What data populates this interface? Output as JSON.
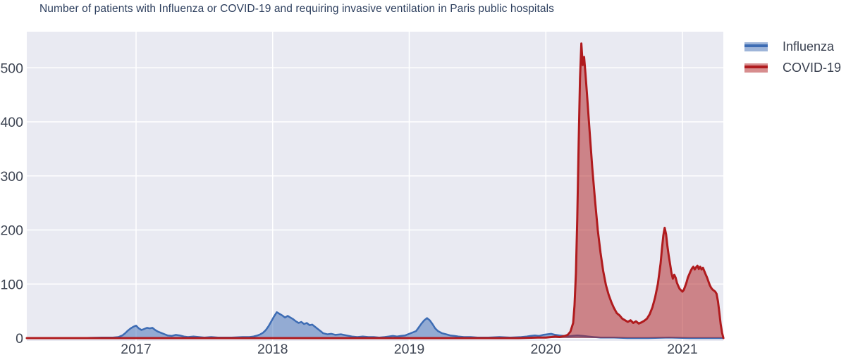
{
  "title": "Number of patients with Influenza or COVID-19 and requiring invasive ventilation in Paris public hospitals",
  "colors": {
    "plot_background": "#e9eaf2",
    "gridline": "#ffffff",
    "title_text": "#2d3f5e",
    "tick_text": "#3f4654",
    "influenza_line": "#3d6cb4",
    "influenza_fill": "rgba(61,108,180,0.5)",
    "covid_line": "#b01b1e",
    "covid_fill": "rgba(176,27,30,0.5)"
  },
  "legend": {
    "items": [
      {
        "label": "Influenza"
      },
      {
        "label": "COVID-19"
      }
    ]
  },
  "chart_data": {
    "type": "area",
    "title": "Number of patients with Influenza or COVID-19 and requiring invasive ventilation in Paris public hospitals",
    "xlabel": "",
    "ylabel": "",
    "grid": true,
    "legend_position": "outside-top-right",
    "x_axis": {
      "range_years": [
        2016.2,
        2021.3
      ],
      "tick_values": [
        2017,
        2018,
        2019,
        2020,
        2021
      ],
      "tick_labels": [
        "2017",
        "2018",
        "2019",
        "2020",
        "2021"
      ]
    },
    "y_axis": {
      "range": [
        0,
        566
      ],
      "tick_values": [
        0,
        100,
        200,
        300,
        400,
        500
      ],
      "tick_labels": [
        "0",
        "100",
        "200",
        "300",
        "400",
        "500"
      ]
    },
    "series": [
      {
        "name": "Influenza",
        "line_color": "#3d6cb4",
        "fill_color": "rgba(61,108,180,0.5)",
        "points": [
          [
            2016.2,
            0
          ],
          [
            2016.4,
            0
          ],
          [
            2016.6,
            0
          ],
          [
            2016.75,
            1
          ],
          [
            2016.83,
            1
          ],
          [
            2016.87,
            2
          ],
          [
            2016.9,
            5
          ],
          [
            2016.92,
            9
          ],
          [
            2016.94,
            14
          ],
          [
            2016.96,
            18
          ],
          [
            2016.98,
            21
          ],
          [
            2017.0,
            23
          ],
          [
            2017.02,
            18
          ],
          [
            2017.04,
            15
          ],
          [
            2017.06,
            17
          ],
          [
            2017.08,
            19
          ],
          [
            2017.1,
            18
          ],
          [
            2017.12,
            19
          ],
          [
            2017.14,
            15
          ],
          [
            2017.16,
            12
          ],
          [
            2017.18,
            10
          ],
          [
            2017.2,
            8
          ],
          [
            2017.23,
            5
          ],
          [
            2017.26,
            4
          ],
          [
            2017.29,
            6
          ],
          [
            2017.32,
            5
          ],
          [
            2017.35,
            3
          ],
          [
            2017.38,
            2
          ],
          [
            2017.42,
            3
          ],
          [
            2017.46,
            2
          ],
          [
            2017.5,
            1
          ],
          [
            2017.55,
            2
          ],
          [
            2017.6,
            1
          ],
          [
            2017.7,
            1
          ],
          [
            2017.78,
            2
          ],
          [
            2017.83,
            2
          ],
          [
            2017.86,
            3
          ],
          [
            2017.89,
            5
          ],
          [
            2017.91,
            7
          ],
          [
            2017.93,
            10
          ],
          [
            2017.95,
            15
          ],
          [
            2017.97,
            22
          ],
          [
            2017.99,
            31
          ],
          [
            2018.01,
            40
          ],
          [
            2018.03,
            48
          ],
          [
            2018.05,
            45
          ],
          [
            2018.07,
            42
          ],
          [
            2018.09,
            38
          ],
          [
            2018.11,
            41
          ],
          [
            2018.13,
            38
          ],
          [
            2018.15,
            35
          ],
          [
            2018.17,
            31
          ],
          [
            2018.19,
            28
          ],
          [
            2018.21,
            30
          ],
          [
            2018.23,
            26
          ],
          [
            2018.25,
            28
          ],
          [
            2018.27,
            24
          ],
          [
            2018.29,
            25
          ],
          [
            2018.31,
            21
          ],
          [
            2018.33,
            17
          ],
          [
            2018.35,
            13
          ],
          [
            2018.37,
            9
          ],
          [
            2018.4,
            7
          ],
          [
            2018.43,
            8
          ],
          [
            2018.46,
            6
          ],
          [
            2018.5,
            7
          ],
          [
            2018.54,
            5
          ],
          [
            2018.58,
            3
          ],
          [
            2018.62,
            2
          ],
          [
            2018.66,
            3
          ],
          [
            2018.7,
            2
          ],
          [
            2018.74,
            2
          ],
          [
            2018.78,
            1
          ],
          [
            2018.82,
            2
          ],
          [
            2018.85,
            3
          ],
          [
            2018.88,
            4
          ],
          [
            2018.91,
            3
          ],
          [
            2018.94,
            4
          ],
          [
            2018.97,
            5
          ],
          [
            2019.0,
            8
          ],
          [
            2019.03,
            11
          ],
          [
            2019.05,
            13
          ],
          [
            2019.07,
            20
          ],
          [
            2019.09,
            27
          ],
          [
            2019.11,
            33
          ],
          [
            2019.13,
            37
          ],
          [
            2019.15,
            33
          ],
          [
            2019.17,
            26
          ],
          [
            2019.19,
            18
          ],
          [
            2019.21,
            13
          ],
          [
            2019.24,
            9
          ],
          [
            2019.27,
            7
          ],
          [
            2019.3,
            5
          ],
          [
            2019.33,
            4
          ],
          [
            2019.36,
            3
          ],
          [
            2019.4,
            2
          ],
          [
            2019.45,
            2
          ],
          [
            2019.5,
            1
          ],
          [
            2019.58,
            1
          ],
          [
            2019.66,
            2
          ],
          [
            2019.74,
            1
          ],
          [
            2019.82,
            2
          ],
          [
            2019.86,
            3
          ],
          [
            2019.89,
            4
          ],
          [
            2019.92,
            5
          ],
          [
            2019.95,
            4
          ],
          [
            2019.98,
            6
          ],
          [
            2020.01,
            7
          ],
          [
            2020.04,
            8
          ],
          [
            2020.07,
            6
          ],
          [
            2020.1,
            5
          ],
          [
            2020.13,
            4
          ],
          [
            2020.16,
            3
          ],
          [
            2020.19,
            4
          ],
          [
            2020.23,
            5
          ],
          [
            2020.27,
            4
          ],
          [
            2020.31,
            3
          ],
          [
            2020.35,
            2
          ],
          [
            2020.4,
            1
          ],
          [
            2020.5,
            1
          ],
          [
            2020.6,
            0
          ],
          [
            2020.75,
            0
          ],
          [
            2020.9,
            1
          ],
          [
            2021.05,
            0
          ],
          [
            2021.3,
            0
          ]
        ]
      },
      {
        "name": "COVID-19",
        "line_color": "#b01b1e",
        "fill_color": "rgba(176,27,30,0.5)",
        "points": [
          [
            2016.2,
            0
          ],
          [
            2017.0,
            0
          ],
          [
            2018.0,
            0
          ],
          [
            2019.0,
            0
          ],
          [
            2019.8,
            0
          ],
          [
            2019.95,
            1
          ],
          [
            2020.0,
            1
          ],
          [
            2020.04,
            2
          ],
          [
            2020.07,
            3
          ],
          [
            2020.1,
            2
          ],
          [
            2020.12,
            3
          ],
          [
            2020.14,
            4
          ],
          [
            2020.16,
            6
          ],
          [
            2020.18,
            12
          ],
          [
            2020.2,
            28
          ],
          [
            2020.21,
            60
          ],
          [
            2020.22,
            120
          ],
          [
            2020.23,
            220
          ],
          [
            2020.24,
            360
          ],
          [
            2020.25,
            480
          ],
          [
            2020.26,
            545
          ],
          [
            2020.27,
            505
          ],
          [
            2020.28,
            520
          ],
          [
            2020.29,
            490
          ],
          [
            2020.3,
            455
          ],
          [
            2020.32,
            385
          ],
          [
            2020.34,
            315
          ],
          [
            2020.36,
            255
          ],
          [
            2020.38,
            200
          ],
          [
            2020.4,
            158
          ],
          [
            2020.42,
            124
          ],
          [
            2020.44,
            98
          ],
          [
            2020.46,
            80
          ],
          [
            2020.48,
            66
          ],
          [
            2020.5,
            55
          ],
          [
            2020.52,
            46
          ],
          [
            2020.54,
            42
          ],
          [
            2020.56,
            36
          ],
          [
            2020.58,
            33
          ],
          [
            2020.6,
            30
          ],
          [
            2020.62,
            33
          ],
          [
            2020.64,
            28
          ],
          [
            2020.66,
            31
          ],
          [
            2020.68,
            27
          ],
          [
            2020.7,
            29
          ],
          [
            2020.72,
            32
          ],
          [
            2020.74,
            36
          ],
          [
            2020.76,
            44
          ],
          [
            2020.78,
            57
          ],
          [
            2020.8,
            75
          ],
          [
            2020.82,
            100
          ],
          [
            2020.84,
            138
          ],
          [
            2020.85,
            165
          ],
          [
            2020.86,
            190
          ],
          [
            2020.87,
            204
          ],
          [
            2020.88,
            192
          ],
          [
            2020.89,
            170
          ],
          [
            2020.9,
            152
          ],
          [
            2020.91,
            136
          ],
          [
            2020.92,
            120
          ],
          [
            2020.93,
            110
          ],
          [
            2020.94,
            117
          ],
          [
            2020.95,
            112
          ],
          [
            2020.96,
            102
          ],
          [
            2020.97,
            96
          ],
          [
            2020.98,
            91
          ],
          [
            2021.0,
            86
          ],
          [
            2021.01,
            89
          ],
          [
            2021.02,
            96
          ],
          [
            2021.03,
            103
          ],
          [
            2021.04,
            112
          ],
          [
            2021.05,
            118
          ],
          [
            2021.06,
            124
          ],
          [
            2021.07,
            129
          ],
          [
            2021.08,
            132
          ],
          [
            2021.09,
            127
          ],
          [
            2021.1,
            131
          ],
          [
            2021.11,
            134
          ],
          [
            2021.12,
            128
          ],
          [
            2021.13,
            132
          ],
          [
            2021.14,
            127
          ],
          [
            2021.15,
            130
          ],
          [
            2021.16,
            124
          ],
          [
            2021.17,
            118
          ],
          [
            2021.18,
            112
          ],
          [
            2021.19,
            105
          ],
          [
            2021.2,
            98
          ],
          [
            2021.21,
            93
          ],
          [
            2021.22,
            90
          ],
          [
            2021.23,
            88
          ],
          [
            2021.24,
            86
          ],
          [
            2021.25,
            82
          ],
          [
            2021.26,
            68
          ],
          [
            2021.27,
            48
          ],
          [
            2021.28,
            26
          ],
          [
            2021.29,
            10
          ],
          [
            2021.3,
            0
          ]
        ]
      }
    ]
  }
}
